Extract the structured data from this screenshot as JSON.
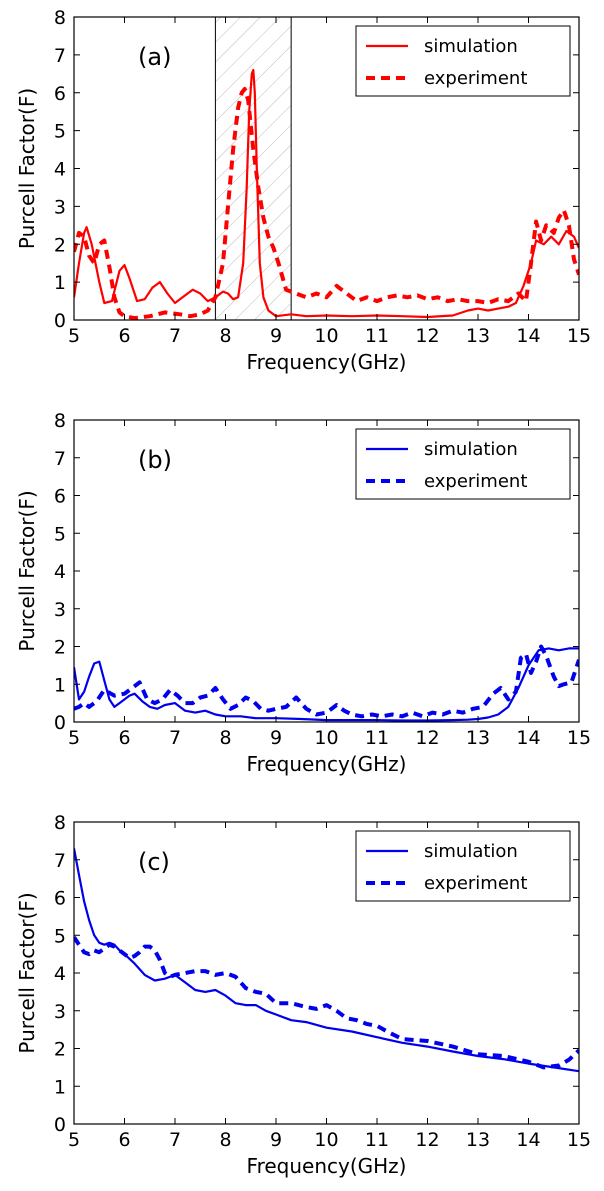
{
  "chart_data": [
    {
      "type": "line",
      "panel_label": "(a)",
      "xlabel": "Frequency(GHz)",
      "ylabel": "Purcell Factor(F)",
      "xlim": [
        5,
        15
      ],
      "ylim": [
        0,
        8
      ],
      "xticks": [
        "5",
        "6",
        "7",
        "8",
        "9",
        "10",
        "11",
        "12",
        "13",
        "14",
        "15"
      ],
      "yticks": [
        "0",
        "1",
        "2",
        "3",
        "4",
        "5",
        "6",
        "7",
        "8"
      ],
      "legend": "top-right",
      "grid": false,
      "color": "#ff0000",
      "band": {
        "x0": 7.8,
        "x1": 9.3,
        "hatch": true
      },
      "series": [
        {
          "name": "simulation",
          "style": "solid",
          "x": [
            5.0,
            5.1,
            5.2,
            5.25,
            5.35,
            5.5,
            5.6,
            5.75,
            5.9,
            6.0,
            6.1,
            6.25,
            6.4,
            6.55,
            6.7,
            6.85,
            7.0,
            7.15,
            7.35,
            7.5,
            7.65,
            7.8,
            7.95,
            8.05,
            8.15,
            8.25,
            8.35,
            8.42,
            8.47,
            8.52,
            8.55,
            8.58,
            8.62,
            8.68,
            8.75,
            8.85,
            9.0,
            9.3,
            9.6,
            10.0,
            10.5,
            11.0,
            11.5,
            12.0,
            12.5,
            12.8,
            13.0,
            13.2,
            13.4,
            13.6,
            13.75,
            13.9,
            14.05,
            14.15,
            14.3,
            14.45,
            14.6,
            14.75,
            14.9,
            15.0
          ],
          "y": [
            0.6,
            1.5,
            2.3,
            2.45,
            2.0,
            1.0,
            0.45,
            0.5,
            1.3,
            1.45,
            1.1,
            0.5,
            0.55,
            0.85,
            1.0,
            0.7,
            0.45,
            0.6,
            0.8,
            0.7,
            0.5,
            0.6,
            0.75,
            0.7,
            0.55,
            0.6,
            1.5,
            3.5,
            5.5,
            6.5,
            6.6,
            6.0,
            4.0,
            1.5,
            0.6,
            0.25,
            0.1,
            0.15,
            0.1,
            0.12,
            0.1,
            0.12,
            0.1,
            0.08,
            0.12,
            0.25,
            0.3,
            0.25,
            0.3,
            0.35,
            0.45,
            0.9,
            1.5,
            2.1,
            2.0,
            2.2,
            2.0,
            2.35,
            2.2,
            1.9
          ]
        },
        {
          "name": "experiment",
          "style": "dashed",
          "x": [
            5.0,
            5.1,
            5.2,
            5.3,
            5.4,
            5.5,
            5.6,
            5.7,
            5.8,
            5.9,
            6.0,
            6.2,
            6.5,
            6.8,
            7.1,
            7.3,
            7.5,
            7.65,
            7.8,
            7.95,
            8.05,
            8.15,
            8.25,
            8.32,
            8.38,
            8.45,
            8.55,
            8.65,
            8.75,
            8.85,
            8.95,
            9.05,
            9.2,
            9.4,
            9.6,
            9.8,
            10.0,
            10.2,
            10.4,
            10.6,
            10.8,
            11.0,
            11.2,
            11.4,
            11.6,
            11.8,
            12.0,
            12.2,
            12.4,
            12.6,
            12.8,
            13.0,
            13.2,
            13.4,
            13.6,
            13.8,
            13.95,
            14.05,
            14.15,
            14.25,
            14.35,
            14.5,
            14.6,
            14.7,
            14.8,
            14.9,
            15.0
          ],
          "y": [
            1.8,
            2.3,
            2.2,
            1.7,
            1.5,
            2.0,
            2.1,
            1.4,
            0.6,
            0.2,
            0.1,
            0.05,
            0.1,
            0.2,
            0.15,
            0.1,
            0.15,
            0.25,
            0.6,
            1.5,
            3.0,
            4.5,
            5.6,
            6.0,
            6.1,
            5.8,
            4.5,
            3.5,
            2.7,
            2.2,
            1.9,
            1.5,
            0.8,
            0.7,
            0.6,
            0.7,
            0.6,
            0.9,
            0.7,
            0.5,
            0.6,
            0.5,
            0.6,
            0.65,
            0.6,
            0.65,
            0.55,
            0.6,
            0.5,
            0.55,
            0.5,
            0.5,
            0.45,
            0.55,
            0.5,
            0.7,
            0.5,
            1.5,
            2.6,
            2.1,
            2.5,
            2.3,
            2.7,
            2.9,
            2.5,
            1.6,
            1.2
          ]
        }
      ]
    },
    {
      "type": "line",
      "panel_label": "(b)",
      "xlabel": "Frequency(GHz)",
      "ylabel": "Purcell Factor(F)",
      "xlim": [
        5,
        15
      ],
      "ylim": [
        0,
        8
      ],
      "xticks": [
        "5",
        "6",
        "7",
        "8",
        "9",
        "10",
        "11",
        "12",
        "13",
        "14",
        "15"
      ],
      "yticks": [
        "0",
        "1",
        "2",
        "3",
        "4",
        "5",
        "6",
        "7",
        "8"
      ],
      "legend": "top-right",
      "grid": false,
      "color": "#0000ee",
      "series": [
        {
          "name": "simulation",
          "style": "solid",
          "x": [
            5.0,
            5.1,
            5.2,
            5.3,
            5.4,
            5.5,
            5.6,
            5.7,
            5.8,
            5.9,
            6.0,
            6.1,
            6.2,
            6.35,
            6.5,
            6.65,
            6.8,
            7.0,
            7.2,
            7.4,
            7.6,
            7.8,
            8.0,
            8.3,
            8.6,
            9.0,
            9.5,
            10.0,
            10.5,
            11.0,
            11.5,
            12.0,
            12.5,
            12.8,
            13.0,
            13.2,
            13.4,
            13.6,
            13.8,
            14.0,
            14.2,
            14.4,
            14.6,
            14.8,
            15.0
          ],
          "y": [
            1.45,
            0.6,
            0.8,
            1.2,
            1.55,
            1.6,
            1.1,
            0.6,
            0.4,
            0.5,
            0.6,
            0.7,
            0.75,
            0.55,
            0.4,
            0.35,
            0.45,
            0.5,
            0.3,
            0.25,
            0.3,
            0.2,
            0.15,
            0.15,
            0.1,
            0.1,
            0.08,
            0.05,
            0.05,
            0.05,
            0.04,
            0.04,
            0.05,
            0.06,
            0.08,
            0.12,
            0.2,
            0.4,
            0.9,
            1.5,
            1.9,
            1.95,
            1.9,
            1.95,
            1.95
          ]
        },
        {
          "name": "experiment",
          "style": "dashed",
          "x": [
            5.0,
            5.1,
            5.2,
            5.3,
            5.45,
            5.6,
            5.8,
            6.0,
            6.15,
            6.3,
            6.45,
            6.6,
            6.75,
            6.9,
            7.05,
            7.2,
            7.35,
            7.5,
            7.65,
            7.8,
            7.95,
            8.1,
            8.25,
            8.4,
            8.55,
            8.7,
            8.85,
            9.0,
            9.2,
            9.4,
            9.6,
            9.8,
            10.0,
            10.2,
            10.35,
            10.5,
            10.7,
            10.9,
            11.1,
            11.3,
            11.5,
            11.7,
            11.9,
            12.1,
            12.3,
            12.5,
            12.7,
            12.9,
            13.1,
            13.3,
            13.45,
            13.6,
            13.75,
            13.85,
            13.95,
            14.05,
            14.15,
            14.25,
            14.35,
            14.5,
            14.6,
            14.7,
            14.85,
            15.0
          ],
          "y": [
            0.35,
            0.4,
            0.5,
            0.4,
            0.55,
            0.85,
            0.7,
            0.75,
            0.9,
            1.05,
            0.6,
            0.5,
            0.6,
            0.85,
            0.7,
            0.5,
            0.5,
            0.65,
            0.7,
            0.9,
            0.6,
            0.35,
            0.45,
            0.65,
            0.55,
            0.35,
            0.3,
            0.35,
            0.4,
            0.65,
            0.35,
            0.2,
            0.25,
            0.45,
            0.3,
            0.2,
            0.15,
            0.2,
            0.15,
            0.2,
            0.15,
            0.25,
            0.15,
            0.25,
            0.2,
            0.3,
            0.25,
            0.35,
            0.4,
            0.75,
            0.9,
            0.6,
            0.8,
            1.7,
            1.8,
            1.3,
            1.6,
            2.0,
            1.75,
            1.2,
            0.95,
            1.0,
            1.05,
            1.65
          ]
        }
      ]
    },
    {
      "type": "line",
      "panel_label": "(c)",
      "xlabel": "Frequency(GHz)",
      "ylabel": "Purcell Factor(F)",
      "xlim": [
        5,
        15
      ],
      "ylim": [
        0,
        8
      ],
      "xticks": [
        "5",
        "6",
        "7",
        "8",
        "9",
        "10",
        "11",
        "12",
        "13",
        "14",
        "15"
      ],
      "yticks": [
        "0",
        "1",
        "2",
        "3",
        "4",
        "5",
        "6",
        "7",
        "8"
      ],
      "legend": "top-right",
      "grid": false,
      "color": "#0000ee",
      "series": [
        {
          "name": "simulation",
          "style": "solid",
          "x": [
            5.0,
            5.1,
            5.2,
            5.3,
            5.4,
            5.5,
            5.6,
            5.7,
            5.8,
            5.9,
            6.0,
            6.2,
            6.4,
            6.6,
            6.8,
            7.0,
            7.2,
            7.4,
            7.6,
            7.8,
            8.0,
            8.2,
            8.4,
            8.6,
            8.8,
            9.0,
            9.3,
            9.6,
            10.0,
            10.5,
            11.0,
            11.5,
            12.0,
            12.5,
            13.0,
            13.5,
            14.0,
            14.5,
            15.0
          ],
          "y": [
            7.3,
            6.6,
            5.9,
            5.4,
            5.0,
            4.8,
            4.75,
            4.8,
            4.75,
            4.6,
            4.5,
            4.25,
            3.95,
            3.8,
            3.85,
            3.95,
            3.75,
            3.55,
            3.5,
            3.55,
            3.4,
            3.2,
            3.15,
            3.15,
            3.0,
            2.9,
            2.75,
            2.7,
            2.55,
            2.45,
            2.3,
            2.15,
            2.05,
            1.92,
            1.8,
            1.72,
            1.6,
            1.5,
            1.4
          ]
        },
        {
          "name": "experiment",
          "style": "dashed",
          "x": [
            5.0,
            5.1,
            5.2,
            5.3,
            5.4,
            5.5,
            5.6,
            5.7,
            5.8,
            5.9,
            6.0,
            6.1,
            6.2,
            6.3,
            6.4,
            6.5,
            6.6,
            6.7,
            6.8,
            6.9,
            7.0,
            7.2,
            7.4,
            7.6,
            7.8,
            8.0,
            8.2,
            8.4,
            8.6,
            8.8,
            9.0,
            9.3,
            9.6,
            9.8,
            10.0,
            10.2,
            10.4,
            10.6,
            10.8,
            11.0,
            11.2,
            11.5,
            12.0,
            12.5,
            13.0,
            13.5,
            14.0,
            14.3,
            14.6,
            14.8,
            15.0
          ],
          "y": [
            4.95,
            4.75,
            4.55,
            4.5,
            4.6,
            4.55,
            4.65,
            4.75,
            4.7,
            4.6,
            4.5,
            4.4,
            4.45,
            4.55,
            4.7,
            4.7,
            4.6,
            4.35,
            4.0,
            3.9,
            3.95,
            4.0,
            4.05,
            4.05,
            3.95,
            4.0,
            3.9,
            3.6,
            3.5,
            3.45,
            3.2,
            3.2,
            3.1,
            3.05,
            3.15,
            3.0,
            2.8,
            2.75,
            2.65,
            2.6,
            2.45,
            2.25,
            2.2,
            2.05,
            1.85,
            1.8,
            1.65,
            1.5,
            1.55,
            1.7,
            1.95
          ]
        }
      ]
    }
  ]
}
